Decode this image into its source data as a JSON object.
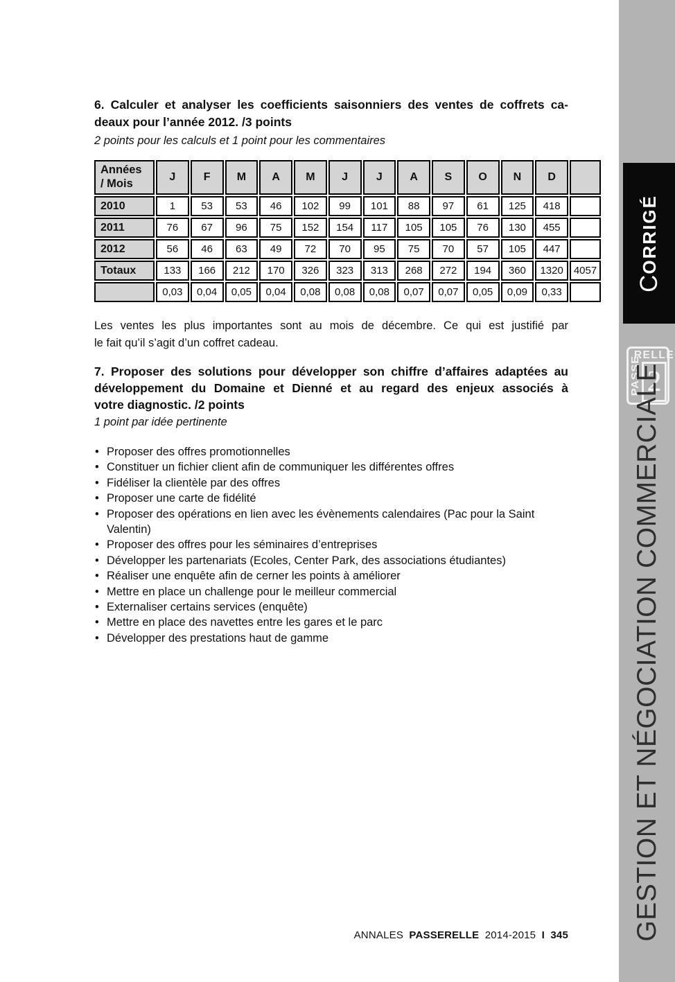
{
  "section6": {
    "heading_line1": "6. Calculer et analyser les coefficients saisonniers des ventes de coffrets ca-",
    "heading_line2": "deaux pour l’année 2012. /3 points",
    "subnote": "2 points pour les calculs et 1 point pour les commentaires",
    "table": {
      "header": [
        "Années\n/ Mois",
        "J",
        "F",
        "M",
        "A",
        "M",
        "J",
        "J",
        "A",
        "S",
        "O",
        "N",
        "D",
        ""
      ],
      "rows": [
        {
          "label": "2010",
          "values": [
            "1",
            "53",
            "53",
            "46",
            "102",
            "99",
            "101",
            "88",
            "97",
            "61",
            "125",
            "418",
            ""
          ]
        },
        {
          "label": "2011",
          "values": [
            "76",
            "67",
            "96",
            "75",
            "152",
            "154",
            "117",
            "105",
            "105",
            "76",
            "130",
            "455",
            ""
          ]
        },
        {
          "label": "2012",
          "values": [
            "56",
            "46",
            "63",
            "49",
            "72",
            "70",
            "95",
            "75",
            "70",
            "57",
            "105",
            "447",
            ""
          ]
        },
        {
          "label": "Totaux",
          "values": [
            "133",
            "166",
            "212",
            "170",
            "326",
            "323",
            "313",
            "268",
            "272",
            "194",
            "360",
            "1320",
            "4057"
          ]
        },
        {
          "label": "",
          "values": [
            "0,03",
            "0,04",
            "0,05",
            "0,04",
            "0,08",
            "0,08",
            "0,08",
            "0,07",
            "0,07",
            "0,05",
            "0,09",
            "0,33",
            ""
          ]
        }
      ]
    },
    "comment_line1": "Les ventes les plus importantes sont au mois de décembre. Ce qui est justifié par",
    "comment_line2": "le fait qu’il s’agit d’un coffret cadeau."
  },
  "section7": {
    "heading_line1": "7. Proposer des solutions pour développer son chiffre d’affaires adaptées au",
    "heading_line2": "développement du Domaine et Dienné et au regard des enjeux associés à",
    "heading_line3": "votre diagnostic. /2 points",
    "subnote": "1 point par idée pertinente",
    "bullet_char": "•",
    "bullets": [
      "Proposer des offres promotionnelles",
      "Constituer un fichier client afin de communiquer les différentes offres",
      "Fidéliser la clientèle par des offres",
      "Proposer une carte de fidélité",
      "Proposer des opérations en lien avec les évènements calendaires (Pac pour la Saint Valentin)",
      "Proposer des offres pour les séminaires d’entreprises",
      "Développer les partenariats (Ecoles, Center Park, des associations étudiantes)",
      "Réaliser une enquête afin de cerner les points à améliorer",
      "Mettre en place un challenge pour le meilleur commercial",
      "Externaliser certains services (enquête)",
      "Mettre en place des navettes entre les gares et le parc",
      "Développer des prestations haut de gamme"
    ]
  },
  "footer": {
    "prefix": "ANNALES",
    "brand": "PASSERELLE",
    "years": "2014-2015",
    "separator": "I",
    "page_number": "345"
  },
  "sidebar": {
    "corrige_initial": "C",
    "corrige_rest": "ORRIGÉ",
    "logo": {
      "passe": "PASSE",
      "relle": "RELLE",
      "number": "2"
    },
    "vertical_title": "GESTION ET NÉGOCIATION COMMERCIALE",
    "colors": {
      "strip": "#b3b3b3",
      "tab_background": "#0a0a0a",
      "table_header_background": "#d4d4d4"
    }
  }
}
